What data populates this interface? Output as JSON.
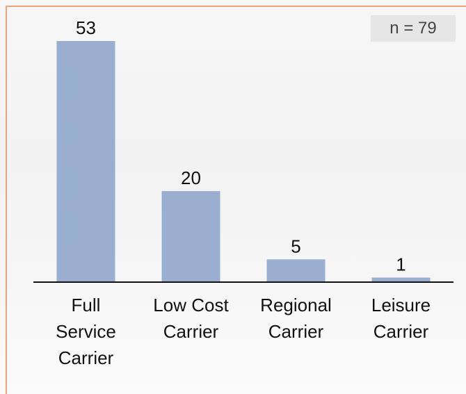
{
  "chart_data": {
    "type": "bar",
    "annotation": "n = 79",
    "categories": [
      "Full Service Carrier",
      "Low Cost Carrier",
      "Regional Carrier",
      "Leisure Carrier"
    ],
    "values": [
      53,
      20,
      5,
      1
    ],
    "color": "#9aafcf"
  }
}
